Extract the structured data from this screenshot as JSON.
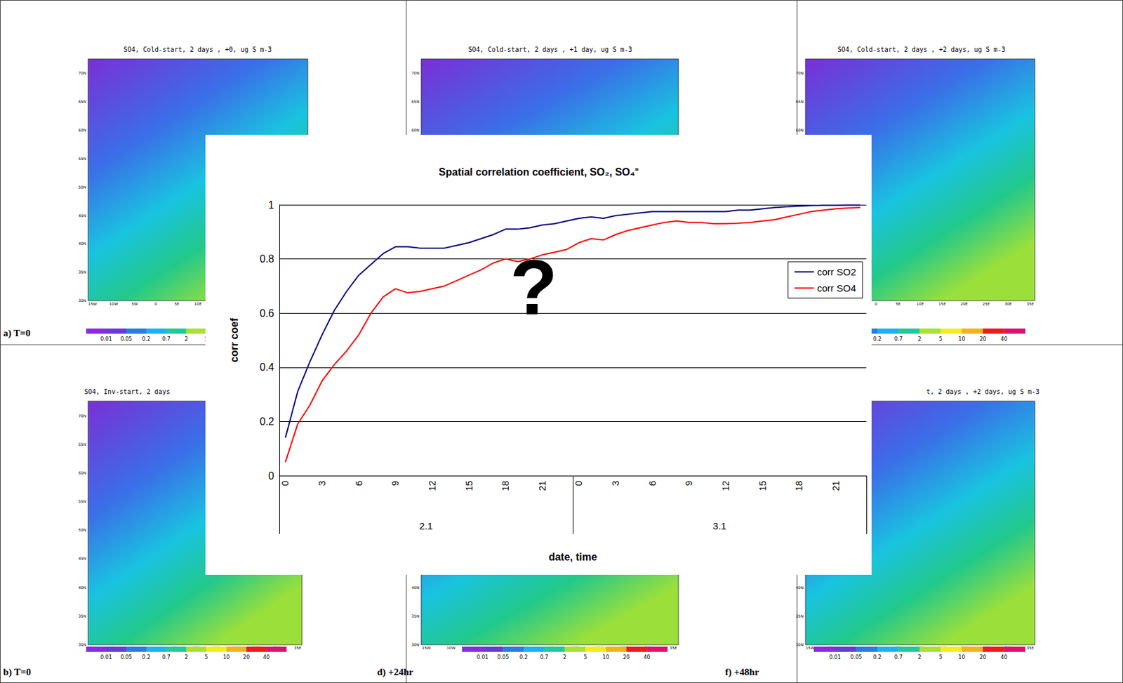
{
  "chart_data": {
    "type": "line",
    "title": "Spatial correlation coefficient, SO₂, SO₄⁼",
    "x_label": "date, time",
    "y_label": "corr coef",
    "categories": [
      "0",
      null,
      null,
      "3",
      null,
      null,
      "6",
      null,
      null,
      "9",
      null,
      null,
      "12",
      null,
      null,
      "15",
      null,
      null,
      "18",
      null,
      null,
      "21",
      null,
      null,
      "0",
      null,
      null,
      "3",
      null,
      null,
      "6",
      null,
      null,
      "9",
      null,
      null,
      "12",
      null,
      null,
      "15",
      null,
      null,
      "18",
      null,
      null,
      "21",
      null,
      null
    ],
    "date_groups": [
      "2.1",
      "3.1"
    ],
    "series": [
      {
        "name": "corr SO2",
        "color": "#000080",
        "values": [
          0.14,
          0.31,
          0.42,
          0.52,
          0.61,
          0.68,
          0.74,
          0.78,
          0.82,
          0.845,
          0.845,
          0.84,
          0.84,
          0.84,
          0.85,
          0.86,
          0.875,
          0.89,
          0.91,
          0.91,
          0.915,
          0.925,
          0.93,
          0.94,
          0.95,
          0.955,
          0.95,
          0.96,
          0.965,
          0.97,
          0.975,
          0.975,
          0.975,
          0.975,
          0.975,
          0.975,
          0.975,
          0.98,
          0.98,
          0.985,
          0.99,
          0.993,
          0.995,
          0.997,
          0.998,
          0.998,
          0.999,
          0.999
        ]
      },
      {
        "name": "corr SO4",
        "color": "#ff0000",
        "values": [
          0.05,
          0.19,
          0.26,
          0.35,
          0.41,
          0.46,
          0.52,
          0.6,
          0.66,
          0.69,
          0.675,
          0.68,
          0.69,
          0.7,
          0.72,
          0.74,
          0.76,
          0.785,
          0.8,
          0.79,
          0.8,
          0.815,
          0.825,
          0.835,
          0.86,
          0.875,
          0.87,
          0.89,
          0.905,
          0.915,
          0.925,
          0.935,
          0.94,
          0.935,
          0.935,
          0.93,
          0.93,
          0.932,
          0.935,
          0.94,
          0.945,
          0.955,
          0.965,
          0.975,
          0.98,
          0.985,
          0.988,
          0.99
        ]
      }
    ],
    "ylim": [
      0,
      1
    ],
    "yticks": [
      0,
      0.2,
      0.4,
      0.6,
      0.8,
      1
    ],
    "grid": true,
    "legend": "right",
    "annotation": "?"
  },
  "panels": [
    {
      "title": "SO4, Cold-start, 2 days , +0, ug S m-3",
      "label": "a) T=0"
    },
    {
      "title": "SO4, Inv-start, 2 days",
      "label": "b) T=0"
    },
    {
      "title": "SO4, Cold-start, 2 days , +1 day, ug S m-3",
      "label": null
    },
    {
      "title": null,
      "label": "d) +24hr"
    },
    {
      "title": "SO4, Cold-start, 2 days , +2 days, ug S m-3",
      "label": null
    },
    {
      "title": "t, 2 days , +2 days, ug S m-3",
      "label": "f) +48hr"
    }
  ],
  "colorbar_ticks": [
    0.01,
    0.05,
    0.2,
    0.7,
    2,
    5,
    10,
    20,
    40
  ],
  "lat_ticks": [
    "70N",
    "65N",
    "60N",
    "55N",
    "50N",
    "45N",
    "40N",
    "35N",
    "30N"
  ],
  "lon_ticks": [
    "15W",
    "10W",
    "5W",
    "0",
    "5E",
    "10E",
    "15E",
    "20E",
    "25E",
    "30E",
    "35E"
  ]
}
